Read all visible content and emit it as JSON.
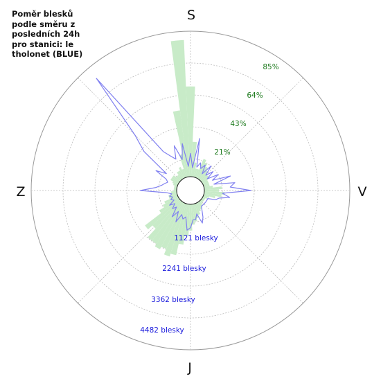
{
  "chart_data": {
    "type": "polar-area",
    "title": "Poměr blesků podle směru z posledních 24h pro stanici: le tholonet (BLUE)",
    "directions": {
      "top": "S",
      "right": "V",
      "bottom": "J",
      "left": "Z"
    },
    "percent_ticks": [
      "21%",
      "43%",
      "64%",
      "85%"
    ],
    "count_ticks": [
      "1121 blesky",
      "2241 blesky",
      "3362 blesky",
      "4482 blesky"
    ],
    "percent_max": 100,
    "count_max": 5600,
    "colors": {
      "ratio_fill": "#c8ebc8",
      "count_line": "#8080f0",
      "grid": "#bbbbbb",
      "percent_text": "#1e7a1e",
      "count_text": "#1a1adc"
    },
    "ratio_series": {
      "name": "",
      "angles": [
        0,
        5,
        10,
        15,
        20,
        25,
        30,
        35,
        40,
        45,
        50,
        55,
        60,
        65,
        70,
        75,
        80,
        85,
        90,
        95,
        100,
        105,
        110,
        115,
        120,
        125,
        130,
        135,
        140,
        145,
        150,
        155,
        160,
        165,
        170,
        175,
        180,
        185,
        190,
        195,
        200,
        205,
        210,
        215,
        220,
        225,
        230,
        235,
        240,
        245,
        250,
        255,
        260,
        265,
        270,
        275,
        280,
        285,
        290,
        295,
        300,
        305,
        310,
        315,
        320,
        325,
        330,
        335,
        340,
        345,
        350,
        355
      ],
      "values": [
        62,
        24,
        10,
        6,
        6,
        14,
        12,
        10,
        8,
        6,
        6,
        6,
        4,
        4,
        4,
        4,
        6,
        12,
        10,
        14,
        12,
        8,
        4,
        3,
        2,
        2,
        2,
        2,
        3,
        4,
        5,
        6,
        8,
        10,
        12,
        14,
        18,
        22,
        28,
        36,
        38,
        34,
        36,
        34,
        34,
        26,
        30,
        16,
        12,
        10,
        6,
        6,
        4,
        4,
        2,
        2,
        2,
        2,
        3,
        4,
        6,
        6,
        6,
        4,
        4,
        6,
        6,
        8,
        6,
        16,
        46,
        94
      ]
    },
    "count_series": {
      "name": "",
      "angles": [
        0,
        5,
        10,
        15,
        20,
        25,
        30,
        35,
        40,
        45,
        50,
        55,
        60,
        65,
        70,
        75,
        80,
        85,
        90,
        95,
        100,
        105,
        110,
        115,
        120,
        125,
        130,
        135,
        140,
        145,
        150,
        155,
        160,
        165,
        170,
        175,
        180,
        185,
        190,
        195,
        200,
        205,
        210,
        215,
        220,
        225,
        230,
        235,
        240,
        245,
        250,
        255,
        260,
        265,
        270,
        275,
        280,
        285,
        290,
        295,
        300,
        305,
        310,
        315,
        320,
        325,
        330,
        335,
        340,
        345,
        350,
        355
      ],
      "values": [
        900,
        350,
        1500,
        400,
        600,
        400,
        600,
        250,
        700,
        300,
        600,
        250,
        700,
        400,
        1100,
        400,
        1200,
        1000,
        1800,
        700,
        1000,
        600,
        500,
        200,
        200,
        200,
        200,
        200,
        200,
        200,
        350,
        600,
        800,
        400,
        600,
        600,
        900,
        1000,
        500,
        600,
        450,
        800,
        400,
        700,
        300,
        450,
        250,
        450,
        200,
        300,
        200,
        300,
        200,
        400,
        1400,
        800,
        600,
        500,
        400,
        500,
        1000,
        600,
        1800,
        2500,
        5100,
        1300,
        1000,
        800,
        1300,
        700,
        1300,
        400
      ]
    }
  }
}
